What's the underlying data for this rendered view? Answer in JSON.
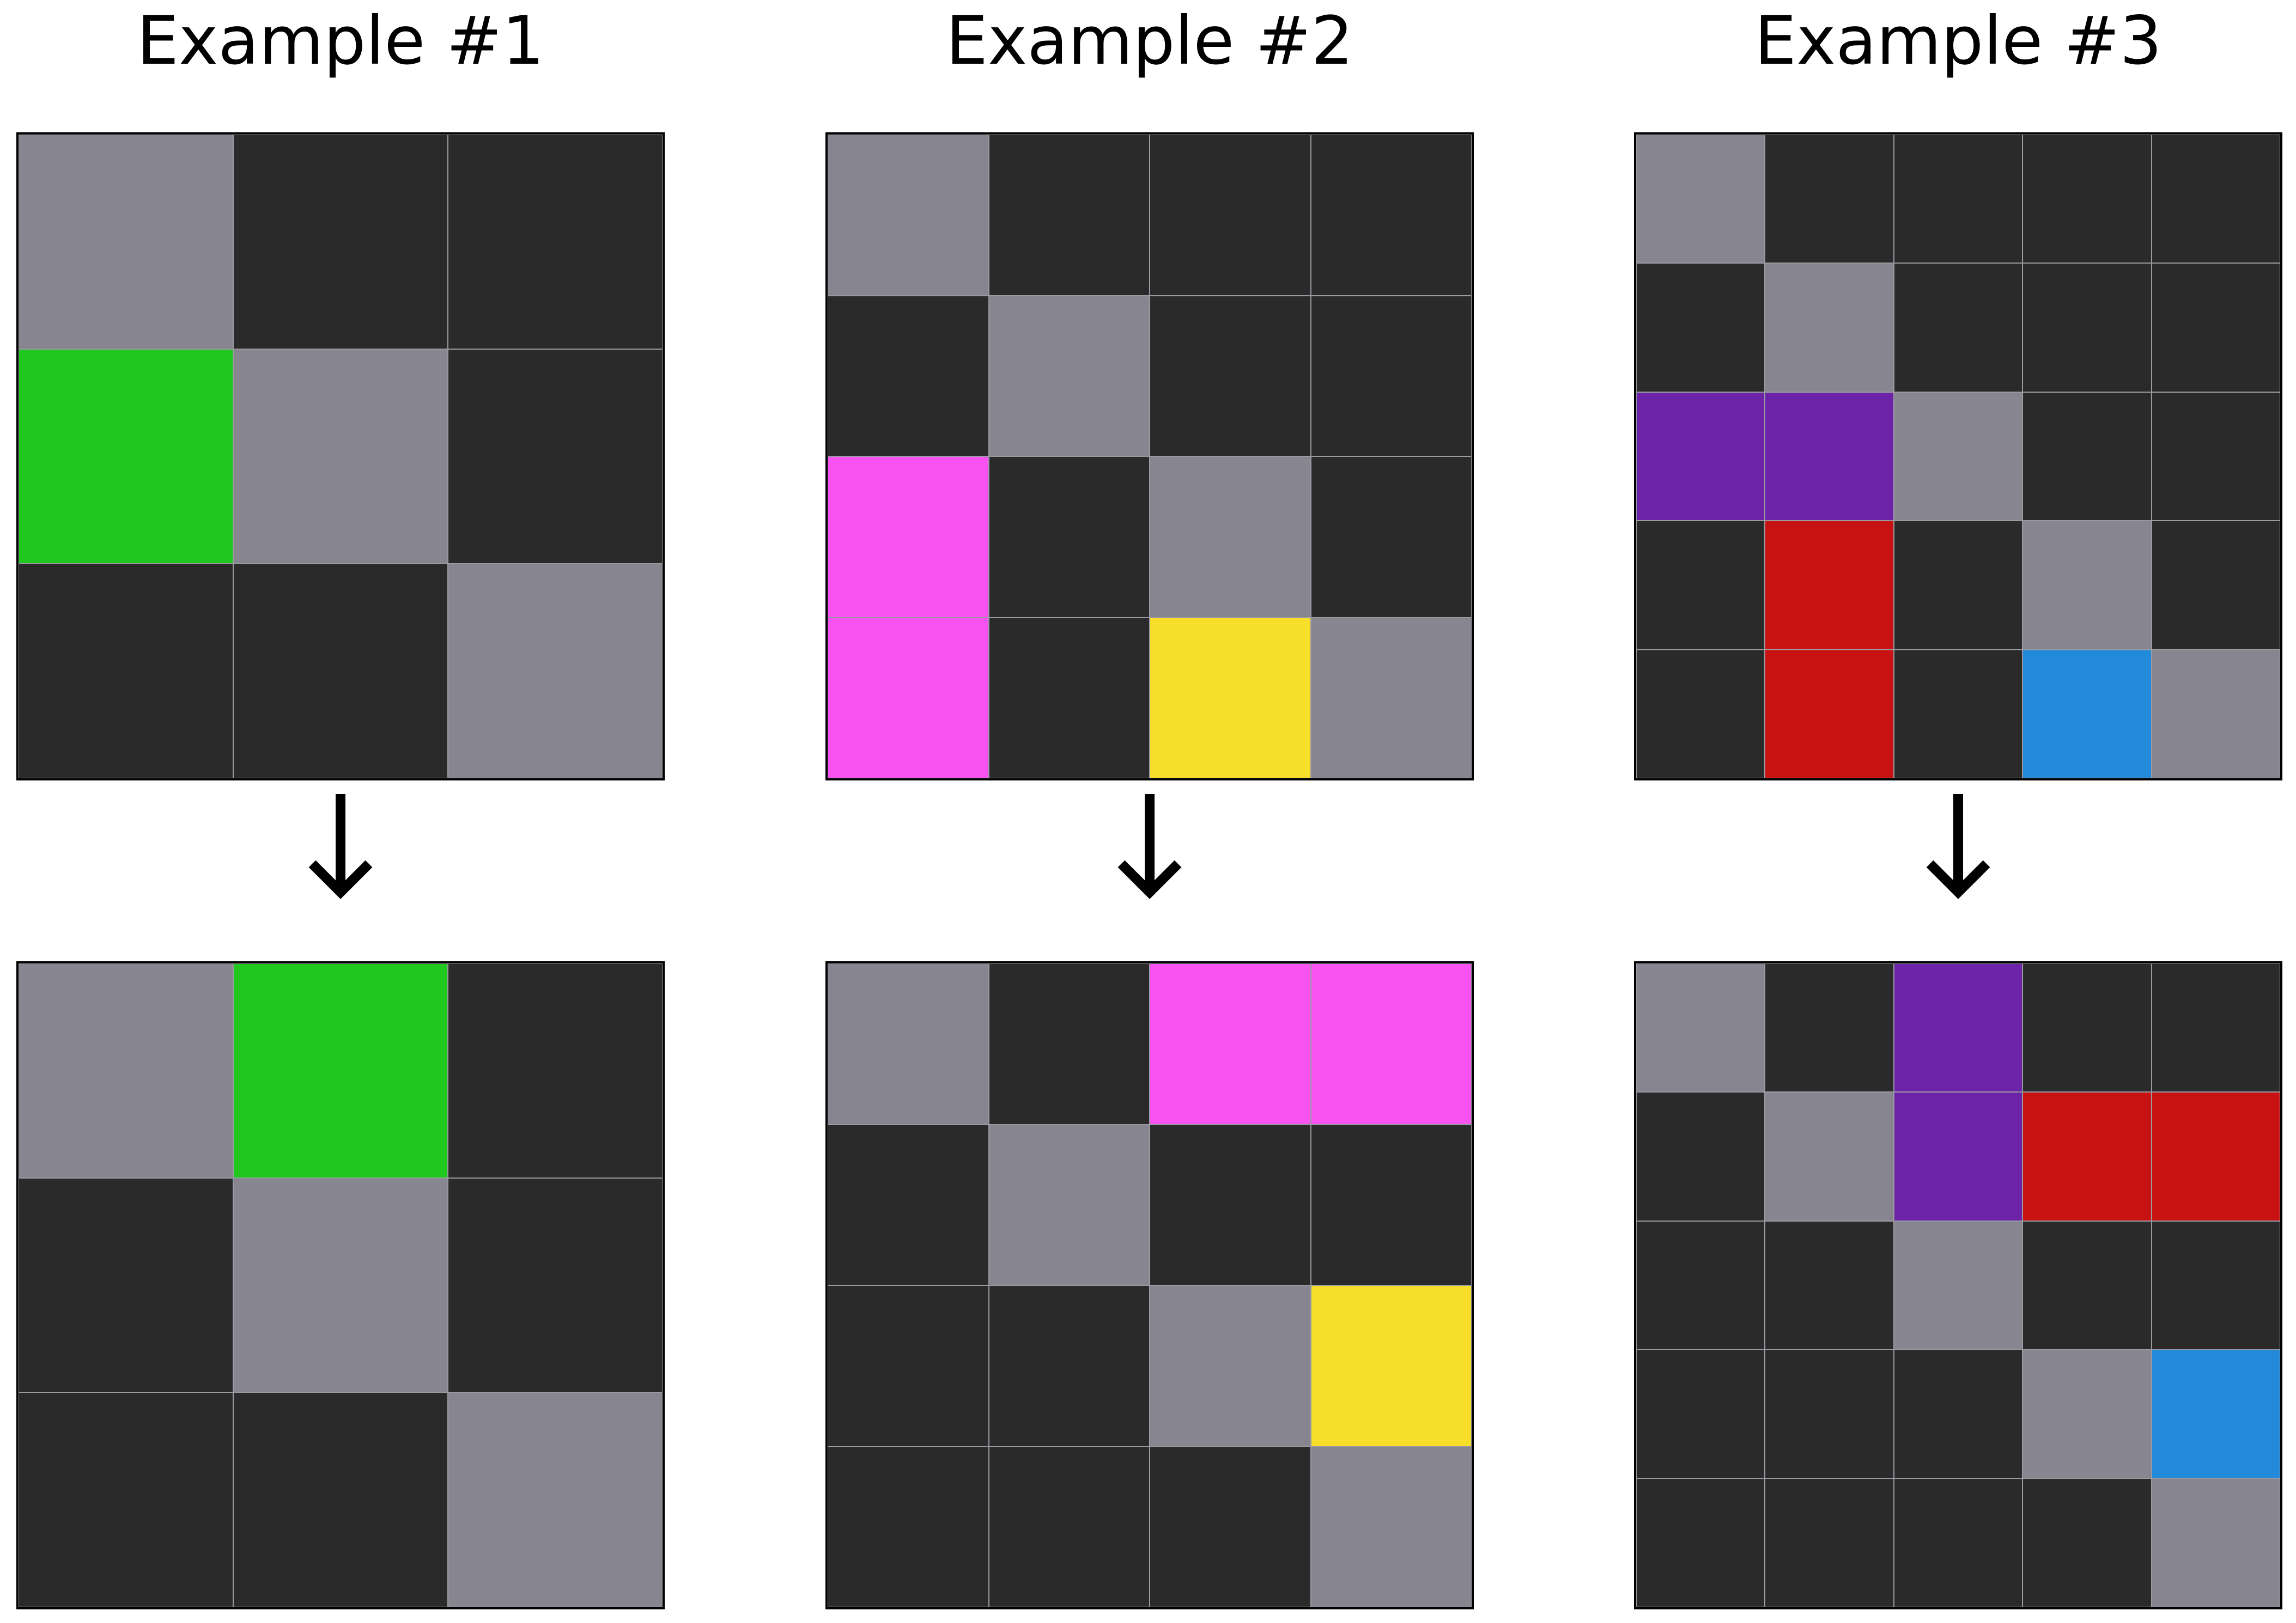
{
  "palette": {
    "0": "#2a2a2a",
    "5": "#87858f",
    "3": "#1fc71f",
    "6": "#f853f0",
    "4": "#f6de2b",
    "8": "#6c23a8",
    "2": "#c81212",
    "1": "#238ada"
  },
  "examples": [
    {
      "title": "Example #1",
      "input": [
        [
          5,
          0,
          0
        ],
        [
          3,
          5,
          0
        ],
        [
          0,
          0,
          5
        ]
      ],
      "output": [
        [
          5,
          3,
          0
        ],
        [
          0,
          5,
          0
        ],
        [
          0,
          0,
          5
        ]
      ]
    },
    {
      "title": "Example #2",
      "input": [
        [
          5,
          0,
          0,
          0
        ],
        [
          0,
          5,
          0,
          0
        ],
        [
          6,
          0,
          5,
          0
        ],
        [
          6,
          0,
          4,
          5
        ]
      ],
      "output": [
        [
          5,
          0,
          6,
          6
        ],
        [
          0,
          5,
          0,
          0
        ],
        [
          0,
          0,
          5,
          4
        ],
        [
          0,
          0,
          0,
          5
        ]
      ]
    },
    {
      "title": "Example #3",
      "input": [
        [
          5,
          0,
          0,
          0,
          0
        ],
        [
          0,
          5,
          0,
          0,
          0
        ],
        [
          8,
          8,
          5,
          0,
          0
        ],
        [
          0,
          2,
          0,
          5,
          0
        ],
        [
          0,
          2,
          0,
          1,
          5
        ]
      ],
      "output": [
        [
          5,
          0,
          8,
          0,
          0
        ],
        [
          0,
          5,
          8,
          2,
          2
        ],
        [
          0,
          0,
          5,
          0,
          0
        ],
        [
          0,
          0,
          0,
          5,
          1
        ],
        [
          0,
          0,
          0,
          0,
          5
        ]
      ]
    }
  ]
}
